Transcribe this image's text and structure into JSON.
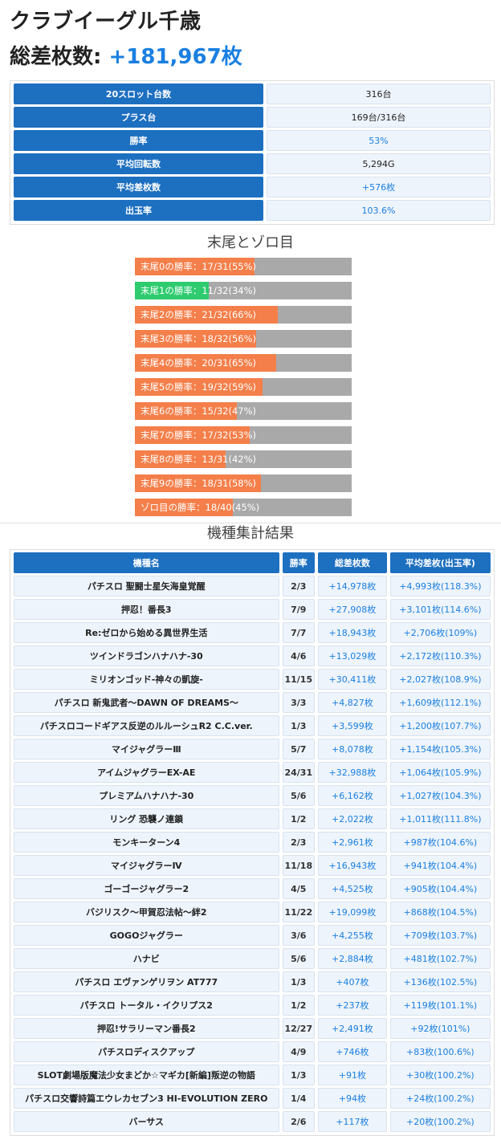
{
  "header": {
    "store_name": "クラブイーグル千歳",
    "total_label": "総差枚数: ",
    "total_value": "+181,967枚"
  },
  "summary": [
    {
      "label": "20スロット台数",
      "value": "316台",
      "accent": false
    },
    {
      "label": "プラス台",
      "value": "169台/316台",
      "accent": false
    },
    {
      "label": "勝率",
      "value": "53%",
      "accent": true
    },
    {
      "label": "平均回転数",
      "value": "5,294G",
      "accent": false
    },
    {
      "label": "平均差枚数",
      "value": "+576枚",
      "accent": true
    },
    {
      "label": "出玉率",
      "value": "103.6%",
      "accent": true
    }
  ],
  "tail_section_title": "末尾とゾロ目",
  "tail_bars": [
    {
      "text": "末尾0の勝率：17/31(55%)",
      "percent": 55,
      "highlight": false
    },
    {
      "text": "末尾1の勝率：11/32(34%)",
      "percent": 34,
      "highlight": true
    },
    {
      "text": "末尾2の勝率：21/32(66%)",
      "percent": 66,
      "highlight": false
    },
    {
      "text": "末尾3の勝率：18/32(56%)",
      "percent": 56,
      "highlight": false
    },
    {
      "text": "末尾4の勝率：20/31(65%)",
      "percent": 65,
      "highlight": false
    },
    {
      "text": "末尾5の勝率：19/32(59%)",
      "percent": 59,
      "highlight": false
    },
    {
      "text": "末尾6の勝率：15/32(47%)",
      "percent": 47,
      "highlight": false
    },
    {
      "text": "末尾7の勝率：17/32(53%)",
      "percent": 53,
      "highlight": false
    },
    {
      "text": "末尾8の勝率：13/31(42%)",
      "percent": 42,
      "highlight": false
    },
    {
      "text": "末尾9の勝率：18/31(58%)",
      "percent": 58,
      "highlight": false
    },
    {
      "text": "ゾロ目の勝率：18/40(45%)",
      "percent": 45,
      "highlight": false
    }
  ],
  "model_section_title": "機種集計結果",
  "model_table": {
    "headers": [
      "機種名",
      "勝率",
      "総差枚数",
      "平均差枚(出玉率)"
    ],
    "rows": [
      [
        "パチスロ 聖闘士星矢海皇覚醒",
        "2/3",
        "+14,978枚",
        "+4,993枚(118.3%)"
      ],
      [
        "押忍！番長3",
        "7/9",
        "+27,908枚",
        "+3,101枚(114.6%)"
      ],
      [
        "Re:ゼロから始める異世界生活",
        "7/7",
        "+18,943枚",
        "+2,706枚(109%)"
      ],
      [
        "ツインドラゴンハナハナ-30",
        "4/6",
        "+13,029枚",
        "+2,172枚(110.3%)"
      ],
      [
        "ミリオンゴッド-神々の凱旋-",
        "11/15",
        "+30,411枚",
        "+2,027枚(108.9%)"
      ],
      [
        "パチスロ 新鬼武者～DAWN OF DREAMS～",
        "3/3",
        "+4,827枚",
        "+1,609枚(112.1%)"
      ],
      [
        "パチスロコードギアス反逆のルルーシュR2 C.C.ver.",
        "1/3",
        "+3,599枚",
        "+1,200枚(107.7%)"
      ],
      [
        "マイジャグラーⅢ",
        "5/7",
        "+8,078枚",
        "+1,154枚(105.3%)"
      ],
      [
        "アイムジャグラーEX-AE",
        "24/31",
        "+32,988枚",
        "+1,064枚(105.9%)"
      ],
      [
        "プレミアムハナハナ-30",
        "5/6",
        "+6,162枚",
        "+1,027枚(104.3%)"
      ],
      [
        "リング 恐襲ノ連鎖",
        "1/2",
        "+2,022枚",
        "+1,011枚(111.8%)"
      ],
      [
        "モンキーターン4",
        "2/3",
        "+2,961枚",
        "+987枚(104.6%)"
      ],
      [
        "マイジャグラーⅣ",
        "11/18",
        "+16,943枚",
        "+941枚(104.4%)"
      ],
      [
        "ゴーゴージャグラー2",
        "4/5",
        "+4,525枚",
        "+905枚(104.4%)"
      ],
      [
        "バジリスク～甲賀忍法帖～絆2",
        "11/22",
        "+19,099枚",
        "+868枚(104.5%)"
      ],
      [
        "GOGOジャグラー",
        "3/6",
        "+4,255枚",
        "+709枚(103.7%)"
      ],
      [
        "ハナビ",
        "5/6",
        "+2,884枚",
        "+481枚(102.7%)"
      ],
      [
        "パチスロ エヴァンゲリヲン AT777",
        "1/3",
        "+407枚",
        "+136枚(102.5%)"
      ],
      [
        "パチスロ トータル・イクリプス2",
        "1/2",
        "+237枚",
        "+119枚(101.1%)"
      ],
      [
        "押忍!サラリーマン番長2",
        "12/27",
        "+2,491枚",
        "+92枚(101%)"
      ],
      [
        "パチスロディスクアップ",
        "4/9",
        "+746枚",
        "+83枚(100.6%)"
      ],
      [
        "SLOT劇場版魔法少女まどか☆マギカ[新編]叛逆の物語",
        "1/3",
        "+91枚",
        "+30枚(100.2%)"
      ],
      [
        "パチスロ交響詩篇エウレカセブン3 HI-EVOLUTION ZERO",
        "1/4",
        "+94枚",
        "+24枚(100.2%)"
      ],
      [
        "バーサス",
        "2/6",
        "+117枚",
        "+20枚(100.2%)"
      ]
    ]
  },
  "colors": {
    "accent_blue": "#1a7fe0",
    "header_blue": "#1d6fc0",
    "bar_orange": "#f47f4a",
    "bar_green": "#2ecb6f",
    "bar_gray": "#a9a9a9"
  }
}
